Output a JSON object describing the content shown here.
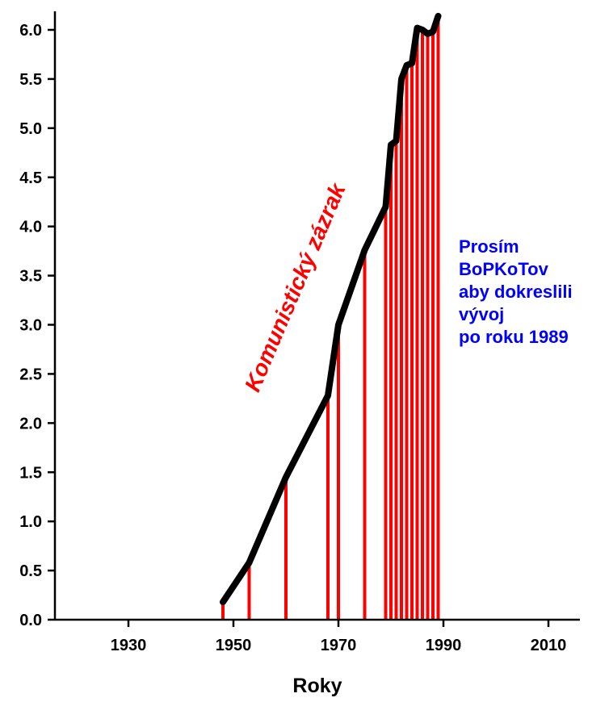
{
  "chart_data": {
    "type": "line",
    "title": "",
    "xlabel": "Roky",
    "ylabel": "",
    "xlim": [
      1916,
      2016
    ],
    "ylim": [
      0,
      6.0
    ],
    "grid": false,
    "x_ticks": [
      1930,
      1950,
      1970,
      1990,
      2010
    ],
    "y_ticks": [
      0.0,
      0.5,
      1.0,
      1.5,
      2.0,
      2.5,
      3.0,
      3.5,
      4.0,
      4.5,
      5.0,
      5.5,
      6.0
    ],
    "series": [
      {
        "name": "",
        "color": "#000000",
        "x": [
          1948,
          1953,
          1960,
          1968,
          1970,
          1975,
          1979,
          1980,
          1981,
          1982,
          1983,
          1984,
          1985,
          1986,
          1987,
          1988,
          1989
        ],
        "y": [
          0.18,
          0.58,
          1.45,
          2.28,
          3.0,
          3.76,
          4.2,
          4.83,
          4.87,
          5.5,
          5.64,
          5.66,
          6.02,
          6.0,
          5.96,
          5.98,
          6.14
        ]
      }
    ],
    "drop_lines": {
      "color": "#ff0000",
      "x": [
        1948,
        1953,
        1960,
        1968,
        1970,
        1975,
        1979,
        1980,
        1981,
        1982,
        1983,
        1984,
        1985,
        1986,
        1987,
        1988,
        1989
      ]
    },
    "annotations": [
      {
        "text": "Komunistický zázrak",
        "color": "#ff0000",
        "lines": []
      },
      {
        "text": "",
        "color": "#0000ff",
        "lines": [
          "Prosím",
          "BoPKoTov",
          "aby dokreslili",
          "vývoj",
          "po roku 1989"
        ]
      }
    ]
  }
}
